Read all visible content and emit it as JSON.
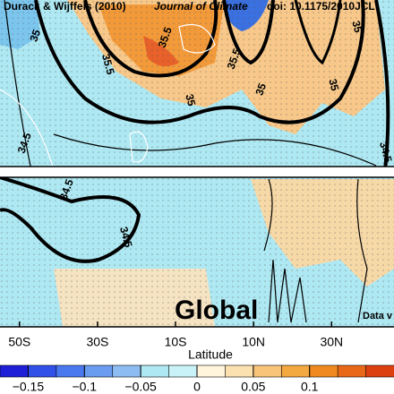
{
  "chart_data": {
    "type": "contour",
    "header": {
      "authors": "Durack & Wijffels (2010)",
      "journal": "Journal of Climate",
      "doi": "doi: 10.1175/2010JCL"
    },
    "region": "Global",
    "note": "Data v",
    "x_label": "Latitude",
    "xlim": [
      -55,
      46
    ],
    "xticks": [
      {
        "value": -50,
        "label": "50S"
      },
      {
        "value": -30,
        "label": "30S"
      },
      {
        "value": -10,
        "label": "10S"
      },
      {
        "value": 10,
        "label": "10N"
      },
      {
        "value": 30,
        "label": "30N"
      }
    ],
    "contour_labels": [
      "35",
      "35.5",
      "35.5",
      "35",
      "35",
      "35",
      "35.5",
      "35",
      "34.5",
      "34.5",
      "34.5",
      "34.5"
    ],
    "colorbar": {
      "lim": [
        -0.175,
        0.175
      ],
      "colors": [
        "#1f1fd8",
        "#3050e8",
        "#4a78ee",
        "#6a9cf0",
        "#8cbcf2",
        "#aee8f2",
        "#c8f2f8",
        "#fff4dc",
        "#fbe0b0",
        "#f8c47a",
        "#f4a840",
        "#f08a20",
        "#e86818",
        "#dc4010"
      ],
      "ticks": [
        {
          "value": -0.15,
          "label": "−0.15"
        },
        {
          "value": -0.1,
          "label": "−0.1"
        },
        {
          "value": -0.05,
          "label": "−0.05"
        },
        0,
        0.05,
        0.1
      ]
    }
  }
}
